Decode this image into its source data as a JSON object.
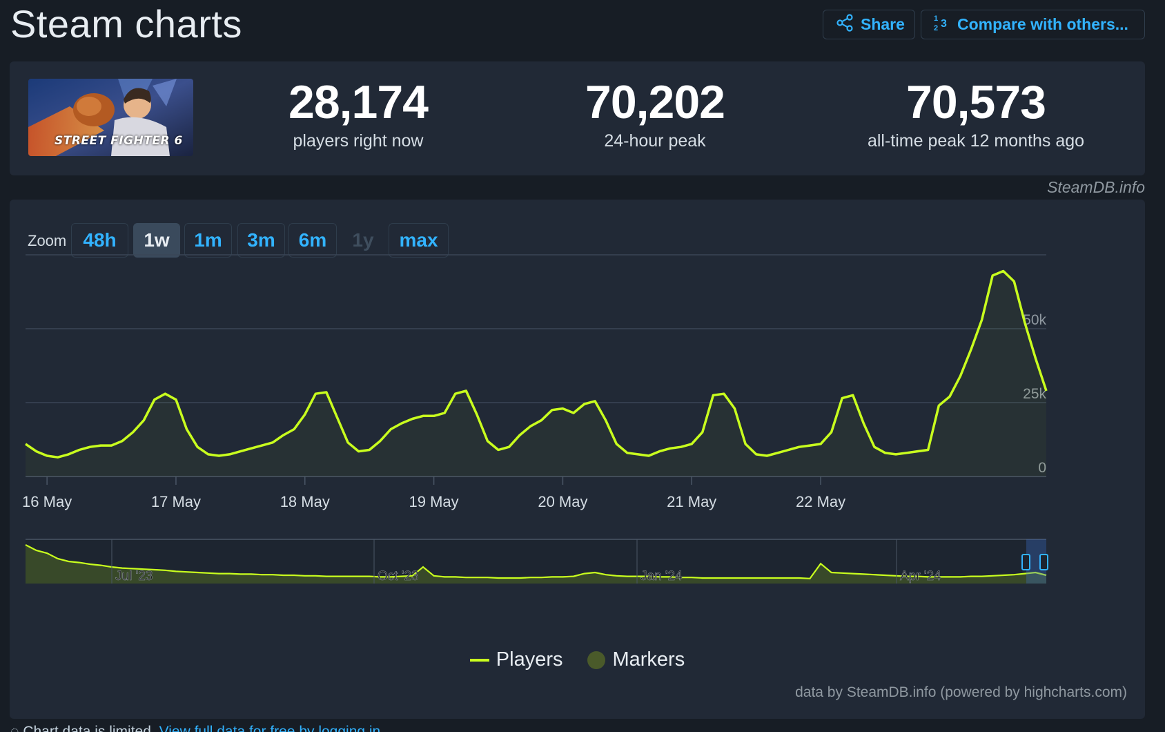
{
  "header": {
    "title": "Steam charts",
    "share_label": "Share",
    "compare_label": "Compare with others..."
  },
  "game": {
    "logo_text": "STREET FIGHTER 6"
  },
  "stats": [
    {
      "value": "28,174",
      "label": "players right now"
    },
    {
      "value": "70,202",
      "label": "24-hour peak"
    },
    {
      "value": "70,573",
      "label": "all-time peak 12 months ago"
    }
  ],
  "source_label": "SteamDB.info",
  "zoom": {
    "label": "Zoom",
    "options": [
      {
        "label": "48h",
        "state": "normal"
      },
      {
        "label": "1w",
        "state": "active"
      },
      {
        "label": "1m",
        "state": "normal"
      },
      {
        "label": "3m",
        "state": "normal"
      },
      {
        "label": "6m",
        "state": "normal"
      },
      {
        "label": "1y",
        "state": "disabled"
      },
      {
        "label": "max",
        "state": "normal"
      }
    ]
  },
  "legend": {
    "players": "Players",
    "markers": "Markers"
  },
  "credit": "data by SteamDB.info (powered by highcharts.com)",
  "cutoff": {
    "text": "Chart data is limited.",
    "link": "View full data for free by logging in"
  },
  "colors": {
    "line": "#c9ff1e",
    "accent": "#32b3ff",
    "card": "#212936",
    "background": "#171d25"
  },
  "chart_data": {
    "type": "line",
    "series": [
      {
        "name": "Players"
      }
    ],
    "x_start": "2024-05-15T20:00",
    "x_step_hours": 2,
    "x_ticks": [
      "16 May",
      "17 May",
      "18 May",
      "19 May",
      "20 May",
      "21 May",
      "22 May"
    ],
    "y_ticks": [
      "0",
      "25k",
      "50k"
    ],
    "ylim": [
      0,
      75000
    ],
    "values": [
      11000,
      8500,
      7000,
      6500,
      7500,
      9000,
      10000,
      10500,
      10500,
      12000,
      15000,
      19000,
      26000,
      28000,
      26000,
      16000,
      10000,
      7500,
      7000,
      7500,
      8500,
      9500,
      10500,
      11500,
      14000,
      16000,
      21000,
      28000,
      28500,
      20000,
      11500,
      8500,
      9000,
      12000,
      16000,
      18000,
      19500,
      20500,
      20500,
      21500,
      28000,
      29000,
      21000,
      12000,
      9000,
      10000,
      14000,
      17000,
      19000,
      22500,
      23000,
      21500,
      24500,
      25500,
      19000,
      11000,
      8000,
      7500,
      7000,
      8500,
      9500,
      10000,
      11000,
      15000,
      27500,
      28000,
      23000,
      11000,
      7500,
      7000,
      8000,
      9000,
      10000,
      10500,
      11000,
      15000,
      26500,
      27500,
      18000,
      10000,
      8000,
      7500,
      8000,
      8500,
      9000,
      24000,
      27000,
      34000,
      43000,
      53000,
      68000,
      69500,
      66000,
      52000,
      40000,
      29000
    ],
    "navigator": {
      "x_ticks": [
        "Jul '23",
        "Oct '23",
        "Jan '24",
        "Apr '24"
      ],
      "values": [
        70000,
        60000,
        55000,
        45000,
        40000,
        38000,
        35000,
        33000,
        30000,
        28000,
        27000,
        26000,
        25000,
        24000,
        22000,
        21000,
        20000,
        19000,
        18000,
        18000,
        17000,
        17000,
        16000,
        16000,
        15000,
        15000,
        14000,
        14000,
        13000,
        13000,
        13000,
        13000,
        13000,
        12000,
        12000,
        13000,
        14000,
        30000,
        14000,
        12000,
        12000,
        11000,
        11000,
        11000,
        10000,
        10000,
        10000,
        11000,
        11000,
        12000,
        12000,
        13000,
        18000,
        20000,
        16000,
        14000,
        13000,
        13000,
        13000,
        12000,
        12000,
        11000,
        11000,
        10000,
        10000,
        10000,
        10000,
        10000,
        10000,
        10000,
        10000,
        10000,
        10000,
        9000,
        36000,
        20000,
        19000,
        18000,
        17000,
        16000,
        15000,
        14000,
        13000,
        13000,
        12000,
        12000,
        12000,
        12000,
        13000,
        13000,
        14000,
        15000,
        16000,
        18000,
        20000,
        15000
      ]
    }
  }
}
